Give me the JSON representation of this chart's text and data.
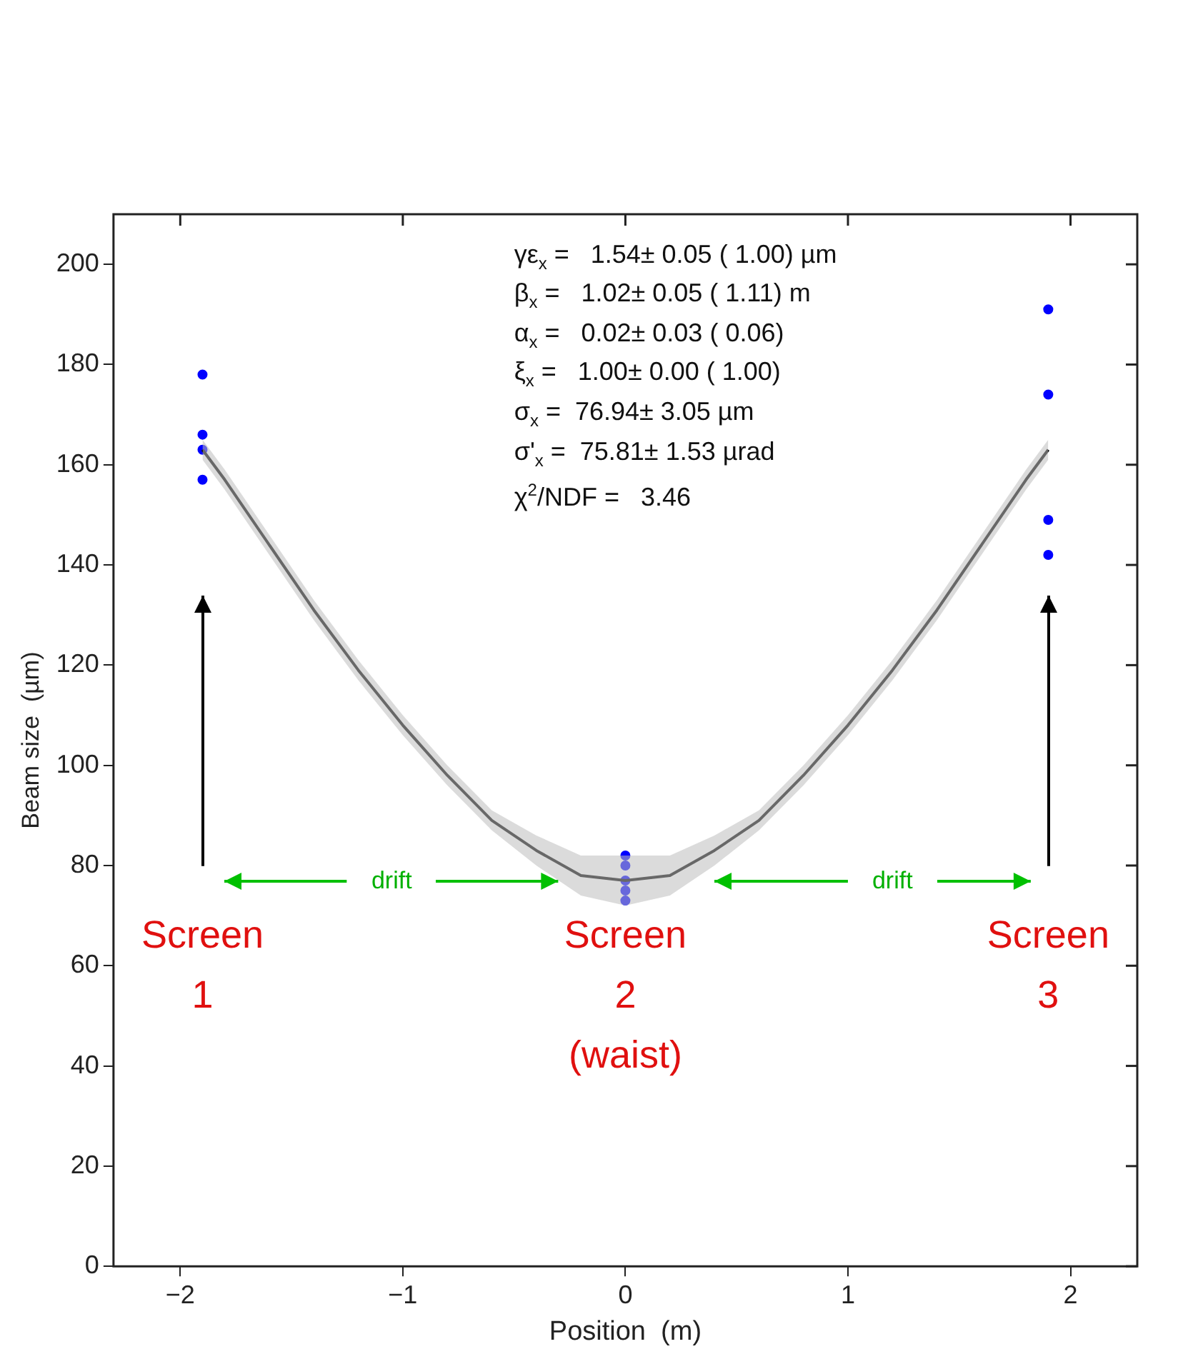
{
  "chart_data": {
    "type": "line",
    "xlabel": "Position  (m)",
    "ylabel": "Beam size  (µm)",
    "xlim": [
      -2.3,
      2.3
    ],
    "xticks": [
      {
        "value": -2,
        "label": "−2"
      },
      {
        "value": -1,
        "label": "−1"
      },
      0,
      1,
      2
    ],
    "ylim": [
      0,
      210
    ],
    "yticks": [
      0,
      20,
      40,
      60,
      80,
      100,
      120,
      140,
      160,
      180,
      200
    ],
    "grid": false,
    "legend": false,
    "series": [
      {
        "type": "line",
        "color": "#000000",
        "marker": "none",
        "line_style": "solid",
        "x": [
          -1.9,
          -1.8,
          -1.6,
          -1.4,
          -1.2,
          -1.0,
          -0.8,
          -0.6,
          -0.4,
          -0.2,
          0,
          0.2,
          0.4,
          0.6,
          0.8,
          1.0,
          1.2,
          1.4,
          1.6,
          1.8,
          1.9
        ],
        "values": [
          163,
          157,
          144,
          131,
          119,
          108,
          98,
          89,
          83,
          78,
          77,
          78,
          83,
          89,
          98,
          108,
          119,
          131,
          144,
          157,
          163
        ],
        "lower": [
          161,
          155,
          142,
          129,
          117,
          106,
          96,
          87,
          80,
          74,
          72,
          74,
          80,
          87,
          96,
          106,
          117,
          129,
          142,
          155,
          161
        ],
        "upper": [
          165,
          159,
          146,
          133,
          121,
          110,
          100,
          91,
          86,
          82,
          82,
          82,
          86,
          91,
          100,
          110,
          121,
          133,
          146,
          159,
          165
        ]
      },
      {
        "type": "scatter",
        "color": "#0000ff",
        "marker": "circle",
        "x": [
          -1.9,
          -1.9,
          -1.9,
          -1.9,
          0,
          0,
          0,
          0,
          0,
          1.9,
          1.9,
          1.9,
          1.9
        ],
        "values": [
          178,
          166,
          163,
          157,
          82,
          80,
          77,
          75,
          73,
          191,
          174,
          149,
          142
        ]
      }
    ],
    "annotations": [
      "γε$_{x}$ =   1.54± 0.05 ( 1.00) µm",
      "β$_{x}$ =   1.02± 0.05 ( 1.11) m",
      "α$_{x}$ =   0.02± 0.03 ( 0.06)",
      "ξ$_{x}$ =   1.00± 0.00 ( 1.00)",
      "σ$_{x}$ =  76.94± 3.05 µm",
      "σ'$_{x}$ =  75.81± 1.53 µrad",
      "χ$^{2}$/NDF =   3.46",
      {
        "text": "drift",
        "x": -1.05,
        "y": 77
      },
      {
        "text": "drift",
        "x": 1.2,
        "y": 77
      },
      "Screen",
      "1",
      "Screen",
      "2",
      "(waist)",
      "Screen",
      "3"
    ]
  }
}
